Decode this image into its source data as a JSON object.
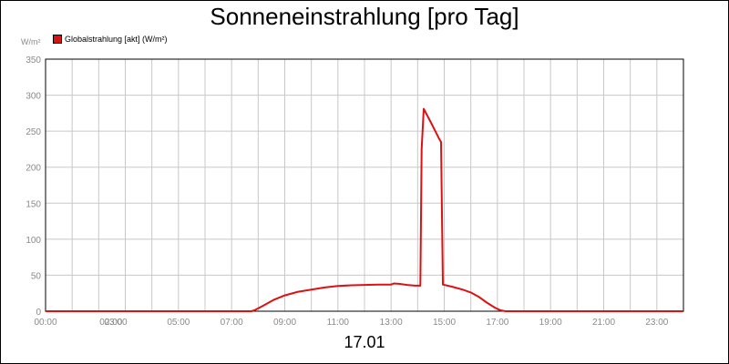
{
  "chart_data": {
    "type": "line",
    "title": "Sonneneinstrahlung [pro Tag]",
    "ylabel": "W/m²",
    "xlabel": "17.01",
    "legend": "top-left",
    "grid": true,
    "ylim": [
      0,
      350
    ],
    "xlim_hours": [
      0,
      24
    ],
    "y_ticks": [
      0,
      50,
      100,
      150,
      200,
      250,
      300,
      350
    ],
    "x_tick_labels": [
      {
        "hour": 0,
        "label": "00:00"
      },
      {
        "hour": 2,
        "label": "02:00"
      },
      {
        "hour": 3,
        "label": "03:00"
      },
      {
        "hour": 5,
        "label": "05:00"
      },
      {
        "hour": 7,
        "label": "07:00"
      },
      {
        "hour": 9,
        "label": "09:00"
      },
      {
        "hour": 11,
        "label": "11:00"
      },
      {
        "hour": 13,
        "label": "13:00"
      },
      {
        "hour": 15,
        "label": "15:00"
      },
      {
        "hour": 17,
        "label": "17:00"
      },
      {
        "hour": 19,
        "label": "19:00"
      },
      {
        "hour": 21,
        "label": "21:00"
      },
      {
        "hour": 23,
        "label": "23:00"
      }
    ],
    "series": [
      {
        "name": "Globalstrahlung [akt] (W/m²)",
        "color": "#dd1111",
        "points": [
          [
            0,
            0
          ],
          [
            7.75,
            0
          ],
          [
            7.9,
            2
          ],
          [
            8.2,
            8
          ],
          [
            8.6,
            16
          ],
          [
            9.0,
            22
          ],
          [
            9.5,
            27
          ],
          [
            10.0,
            30
          ],
          [
            10.5,
            33
          ],
          [
            11.0,
            35
          ],
          [
            11.5,
            36
          ],
          [
            12.0,
            36.5
          ],
          [
            12.5,
            37
          ],
          [
            13.0,
            37
          ],
          [
            13.1,
            38.5
          ],
          [
            13.3,
            38
          ],
          [
            13.6,
            36.5
          ],
          [
            13.9,
            35.5
          ],
          [
            14.1,
            35.5
          ],
          [
            14.15,
            225
          ],
          [
            14.23,
            281
          ],
          [
            14.5,
            262
          ],
          [
            14.8,
            240
          ],
          [
            14.88,
            235
          ],
          [
            14.95,
            37
          ],
          [
            15.3,
            34
          ],
          [
            15.7,
            30
          ],
          [
            16.0,
            26
          ],
          [
            16.3,
            20
          ],
          [
            16.6,
            12
          ],
          [
            16.9,
            5
          ],
          [
            17.1,
            1.5
          ],
          [
            17.3,
            0
          ],
          [
            24,
            0
          ]
        ]
      }
    ]
  }
}
